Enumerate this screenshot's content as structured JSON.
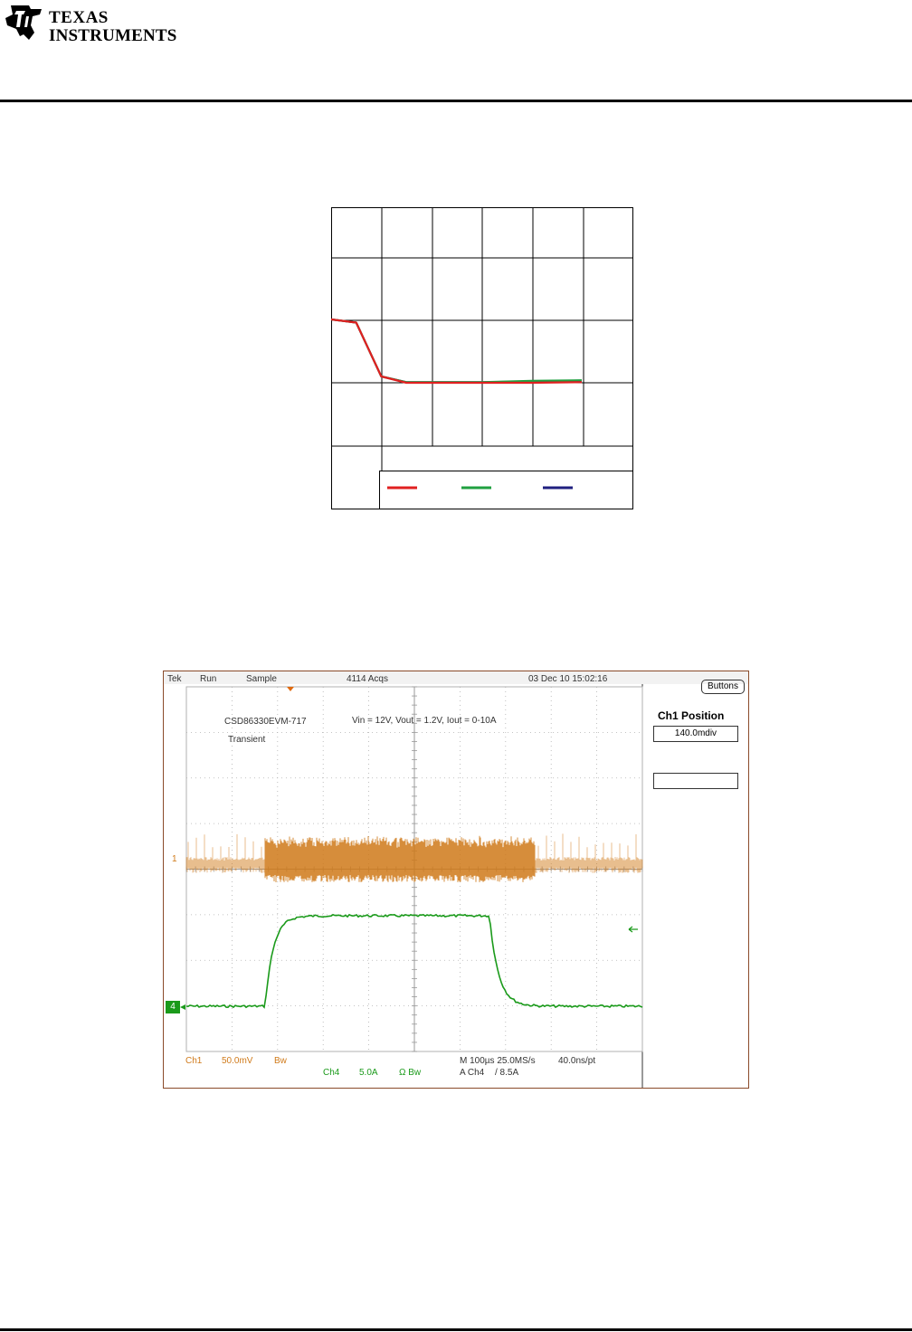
{
  "header": {
    "logo_line1": "TEXAS",
    "logo_line2": "INSTRUMENTS"
  },
  "chart_data": {
    "type": "line",
    "x": [
      0,
      0.5,
      1.0,
      1.5,
      2,
      3,
      4,
      5
    ],
    "series": [
      {
        "color": "#e02020",
        "values": [
          1.0,
          0.95,
          0.1,
          0.0,
          0.0,
          0.0,
          0.0,
          0.01
        ]
      },
      {
        "color": "#20a040",
        "values": [
          1.0,
          0.95,
          0.1,
          0.01,
          0.01,
          0.01,
          0.03,
          0.04
        ]
      },
      {
        "color": "#202080",
        "values": [
          1.0,
          0.95,
          0.1,
          0.01,
          0.01,
          0.01,
          0.02,
          0.03
        ]
      }
    ],
    "grid": true,
    "legend": "bottom-right"
  },
  "scope": {
    "header": {
      "brand": "Tek",
      "mode": "Run",
      "acq_type": "Sample",
      "acqs": "4114 Acqs",
      "timestamp": "03 Dec 10 15:02:16"
    },
    "annotations": {
      "line1": "CSD86330EVM-717",
      "line2": "Transient",
      "conditions": "Vin = 12V, Vout = 1.2V, Iout = 0-10A"
    },
    "side_panel": {
      "buttons_label": "Buttons",
      "title": "Ch1 Position",
      "value": "140.0mdiv",
      "empty_value": ""
    },
    "ch1_marker": "1",
    "ch4_marker": "4",
    "footer": {
      "ch1_label": "Ch1",
      "ch1_scale": "50.0mV",
      "ch1_coupling": "Bw",
      "ch4_label": "Ch4",
      "ch4_scale": "5.0A",
      "ch4_coupling": "Ω Bw",
      "timebase": "M 100µs 25.0MS/s",
      "sample_interval": "40.0ns/pt",
      "trigger_source": "A Ch4",
      "trigger_level": "/ 8.5A"
    },
    "colors": {
      "ch1": "#d07a1a",
      "ch4": "#1a9a1a",
      "grid": "#b0b0b0"
    }
  }
}
